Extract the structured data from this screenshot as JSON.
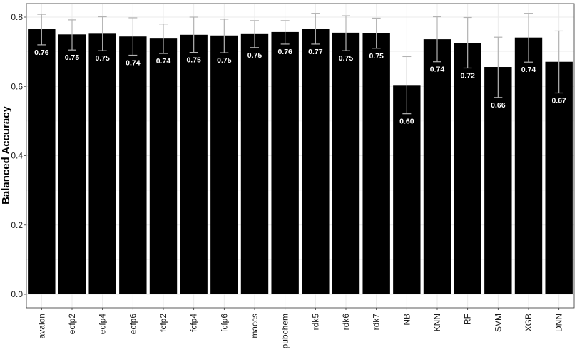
{
  "chart_data": {
    "type": "bar",
    "title": "",
    "xlabel": "",
    "ylabel": "Balanced Accuracy",
    "ylim": [
      0,
      0.82
    ],
    "yticks": [
      "0.0",
      "0.2",
      "0.4",
      "0.6",
      "0.8"
    ],
    "ytick_values": [
      0,
      0.2,
      0.4,
      0.6,
      0.8
    ],
    "grid": true,
    "legend": "none",
    "bar_color": "#000000",
    "label_color": "#ffffff",
    "error_bar_color": "#b3b3b3",
    "grid_color": "#ebebeb",
    "categories": [
      "avalon",
      "ecfp2",
      "ecfp4",
      "ecfp6",
      "fcfp2",
      "fcfp4",
      "fcfp6",
      "maccs",
      "pubchem",
      "rdk5",
      "rdk6",
      "rdk7",
      "NB",
      "KNN",
      "RF",
      "SVM",
      "XGB",
      "DNN"
    ],
    "values": [
      0.765,
      0.75,
      0.752,
      0.744,
      0.738,
      0.749,
      0.747,
      0.751,
      0.757,
      0.767,
      0.755,
      0.754,
      0.604,
      0.736,
      0.725,
      0.656,
      0.741,
      0.671
    ],
    "labels": [
      "0.76",
      "0.75",
      "0.75",
      "0.74",
      "0.74",
      "0.75",
      "0.75",
      "0.75",
      "0.76",
      "0.77",
      "0.75",
      "0.75",
      "0.60",
      "0.74",
      "0.72",
      "0.66",
      "0.74",
      "0.67"
    ],
    "error_low": [
      0.72,
      0.705,
      0.703,
      0.69,
      0.695,
      0.698,
      0.697,
      0.712,
      0.722,
      0.722,
      0.703,
      0.71,
      0.521,
      0.671,
      0.653,
      0.568,
      0.67,
      0.581
    ],
    "error_high": [
      0.808,
      0.792,
      0.801,
      0.798,
      0.78,
      0.8,
      0.794,
      0.79,
      0.79,
      0.811,
      0.804,
      0.797,
      0.686,
      0.801,
      0.799,
      0.742,
      0.811,
      0.76
    ]
  }
}
